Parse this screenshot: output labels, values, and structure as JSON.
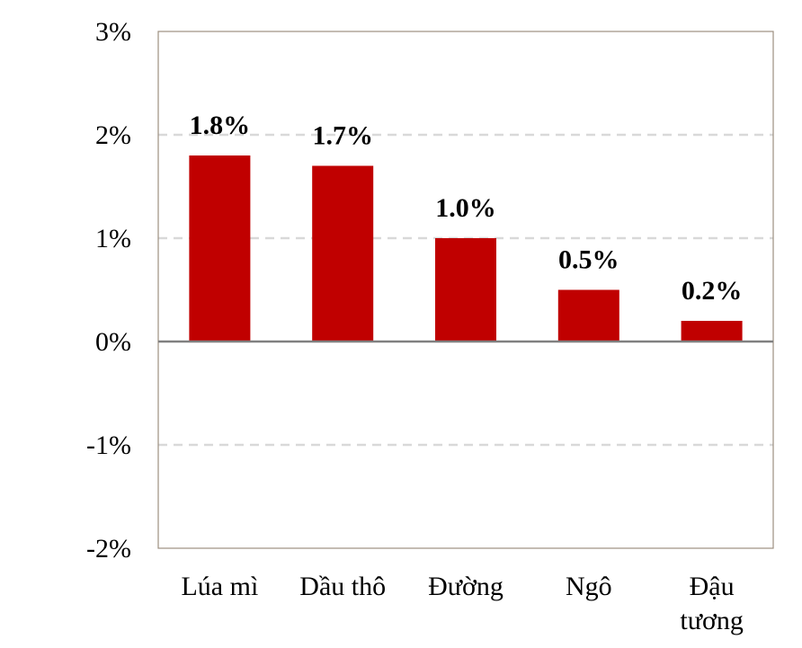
{
  "chart_data": {
    "type": "bar",
    "title": "",
    "xlabel": "",
    "ylabel": "",
    "categories": [
      [
        "Lúa mì"
      ],
      [
        "Dầu thô"
      ],
      [
        "Đường"
      ],
      [
        "Ngô"
      ],
      [
        "Đậu",
        "tương"
      ]
    ],
    "values": [
      1.8,
      1.7,
      1.0,
      0.5,
      0.2
    ],
    "data_labels": [
      "1.8%",
      "1.7%",
      "1.0%",
      "0.5%",
      "0.2%"
    ],
    "ylim": [
      -2,
      3
    ],
    "yticks": [
      3,
      2,
      1,
      0,
      -1,
      -2
    ],
    "ytick_labels": [
      "3%",
      "2%",
      "1%",
      "0%",
      "-1%",
      "-2%"
    ],
    "grid": "horizontal dashed",
    "legend": "none",
    "colors": {
      "bar": "#c00000",
      "grid": "#d9d9d9",
      "zero_line": "#808080",
      "frame": "#9c8f80"
    }
  }
}
